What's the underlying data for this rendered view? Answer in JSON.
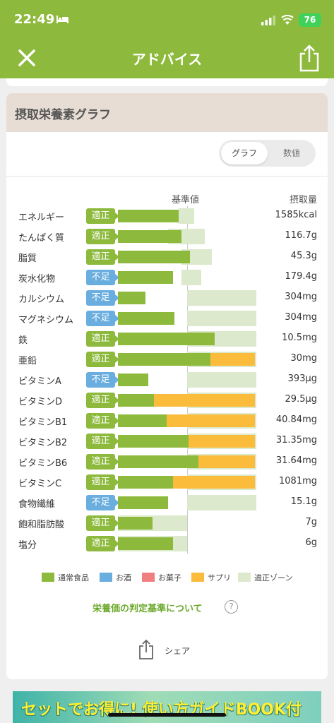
{
  "status_bar": {
    "time": "22:49",
    "battery": "76"
  },
  "header": {
    "title": "アドバイス"
  },
  "card": {
    "title": "摂取栄養素グラフ",
    "toggle": {
      "graph_label": "グラフ",
      "number_label": "数値"
    },
    "column_base": "基準値",
    "column_intake": "摂取量"
  },
  "rows": [
    {
      "name": "エネルギー",
      "badge": "適正",
      "status": "ok",
      "value": "1585kcal",
      "normal_pct": 44,
      "supp_pct": 0,
      "zone": [
        44,
        55
      ]
    },
    {
      "name": "たんぱく質",
      "badge": "適正",
      "status": "ok",
      "value": "116.7g",
      "normal_pct": 46,
      "supp_pct": 0,
      "zone": [
        36,
        63
      ]
    },
    {
      "name": "脂質",
      "badge": "適正",
      "status": "ok",
      "value": "45.3g",
      "normal_pct": 52,
      "supp_pct": 0,
      "zone": [
        46,
        68
      ]
    },
    {
      "name": "炭水化物",
      "badge": "不足",
      "status": "low",
      "value": "179.4g",
      "normal_pct": 40,
      "supp_pct": 0,
      "zone": [
        46,
        60
      ]
    },
    {
      "name": "カルシウム",
      "badge": "不足",
      "status": "low",
      "value": "304mg",
      "normal_pct": 20,
      "supp_pct": 0,
      "zone": [
        50,
        100
      ]
    },
    {
      "name": "マグネシウム",
      "badge": "不足",
      "status": "low",
      "value": "304mg",
      "normal_pct": 41,
      "supp_pct": 0,
      "zone": [
        50,
        100
      ]
    },
    {
      "name": "鉄",
      "badge": "適正",
      "status": "ok",
      "value": "10.5mg",
      "normal_pct": 70,
      "supp_pct": 0,
      "zone": [
        50,
        100
      ]
    },
    {
      "name": "亜鉛",
      "badge": "適正",
      "status": "ok",
      "value": "30mg",
      "normal_pct": 67,
      "supp_pct": 32,
      "zone": [
        50,
        100
      ]
    },
    {
      "name": "ビタミンA",
      "badge": "不足",
      "status": "low",
      "value": "393μg",
      "normal_pct": 22,
      "supp_pct": 0,
      "zone": [
        50,
        100
      ]
    },
    {
      "name": "ビタミンD",
      "badge": "適正",
      "status": "ok",
      "value": "29.5μg",
      "normal_pct": 26,
      "supp_pct": 73,
      "zone": [
        50,
        100
      ]
    },
    {
      "name": "ビタミンB1",
      "badge": "適正",
      "status": "ok",
      "value": "40.84mg",
      "normal_pct": 35,
      "supp_pct": 64,
      "zone": [
        50,
        100
      ]
    },
    {
      "name": "ビタミンB2",
      "badge": "適正",
      "status": "ok",
      "value": "31.35mg",
      "normal_pct": 51,
      "supp_pct": 48,
      "zone": [
        50,
        100
      ]
    },
    {
      "name": "ビタミンB6",
      "badge": "適正",
      "status": "ok",
      "value": "31.64mg",
      "normal_pct": 58,
      "supp_pct": 41,
      "zone": [
        50,
        100
      ]
    },
    {
      "name": "ビタミンC",
      "badge": "適正",
      "status": "ok",
      "value": "1081mg",
      "normal_pct": 40,
      "supp_pct": 59,
      "zone": [
        50,
        100
      ]
    },
    {
      "name": "食物繊維",
      "badge": "不足",
      "status": "low",
      "value": "15.1g",
      "normal_pct": 36,
      "supp_pct": 0,
      "zone": [
        50,
        100
      ]
    },
    {
      "name": "飽和脂肪酸",
      "badge": "適正",
      "status": "ok",
      "value": "7g",
      "normal_pct": 25,
      "supp_pct": 0,
      "zone": [
        0,
        50
      ]
    },
    {
      "name": "塩分",
      "badge": "適正",
      "status": "ok",
      "value": "6g",
      "normal_pct": 40,
      "supp_pct": 0,
      "zone": [
        0,
        50
      ]
    }
  ],
  "legend": [
    {
      "label": "通常食品",
      "color": "#8dba3c"
    },
    {
      "label": "お酒",
      "color": "#6aaedf"
    },
    {
      "label": "お菓子",
      "color": "#f07f7f"
    },
    {
      "label": "サプリ",
      "color": "#fbbc3c"
    },
    {
      "label": "適正ゾーン",
      "color": "#dde9cc"
    }
  ],
  "criteria_link": "栄養価の判定基準について",
  "help_icon_text": "?",
  "share_label": "シェア",
  "banner_text": "セットでお得に! 使い方ガイドBOOK付"
}
